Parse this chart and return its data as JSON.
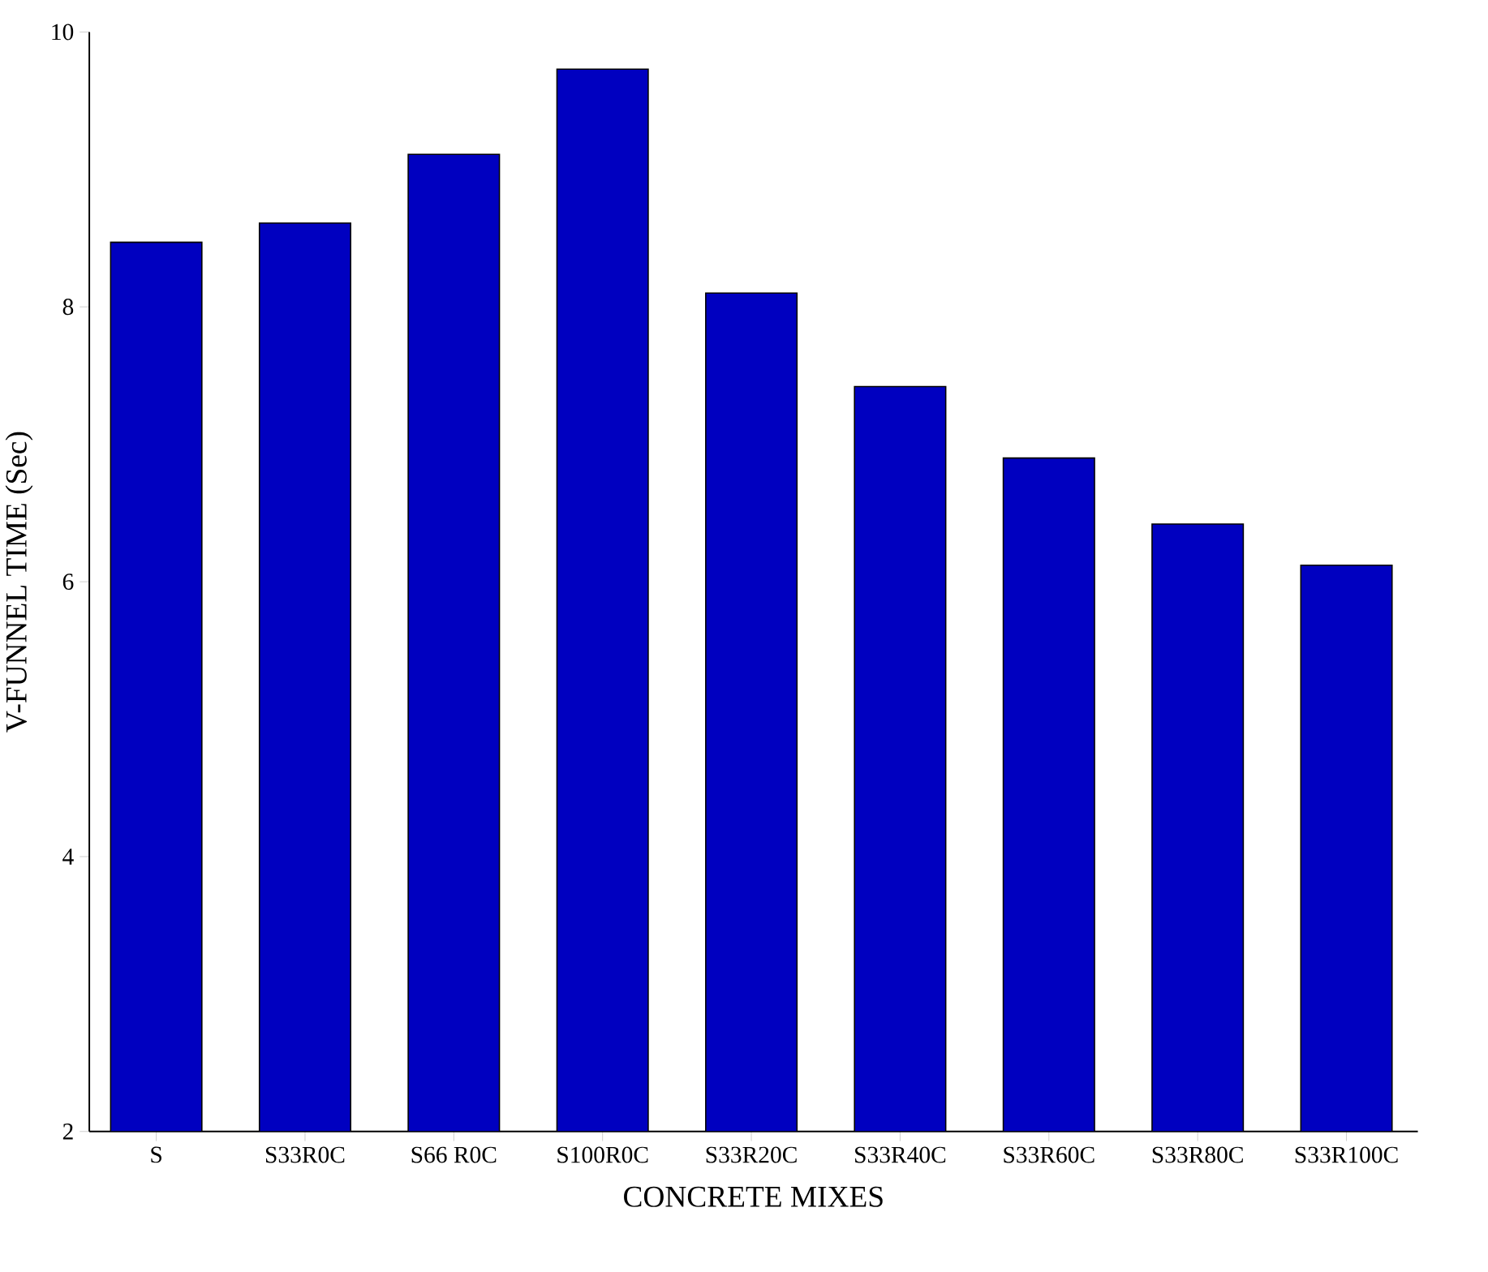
{
  "chart_data": {
    "type": "bar",
    "xlabel": "CONCRETE  MIXES",
    "ylabel": "V-FUNNEL TIME (Sec)",
    "categories": [
      "S",
      "S33R0C",
      "S66 R0C",
      "S100R0C",
      "S33R20C",
      "S33R40C",
      "S33R60C",
      "S33R80C",
      "S33R100C"
    ],
    "values": [
      8.47,
      8.61,
      9.11,
      9.73,
      8.1,
      7.42,
      6.9,
      6.42,
      6.12
    ],
    "color": "#0000c0",
    "ylim": [
      2,
      10
    ],
    "yticks": [
      2,
      4,
      6,
      8,
      10
    ],
    "grid": false
  }
}
